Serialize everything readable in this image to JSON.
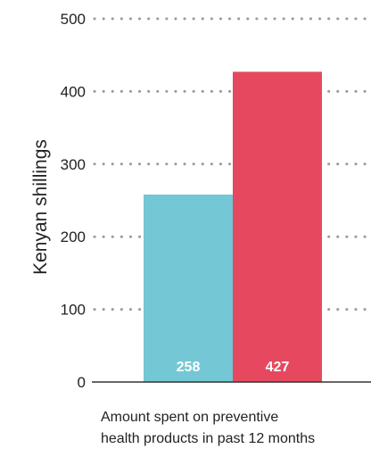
{
  "chart_data": {
    "type": "bar",
    "title": "",
    "ylabel": "Kenyan shillings",
    "xlabel": "",
    "ylim": [
      0,
      500
    ],
    "yticks": [
      "0",
      "100",
      "200",
      "300",
      "400",
      "500"
    ],
    "grid": true,
    "category_label": [
      "Amount spent on preventive",
      "health products in past 12 months"
    ],
    "bars": [
      {
        "value": 258,
        "label": "258",
        "color": "#74c7d4"
      },
      {
        "value": 427,
        "label": "427",
        "color": "#e6495f"
      }
    ]
  }
}
